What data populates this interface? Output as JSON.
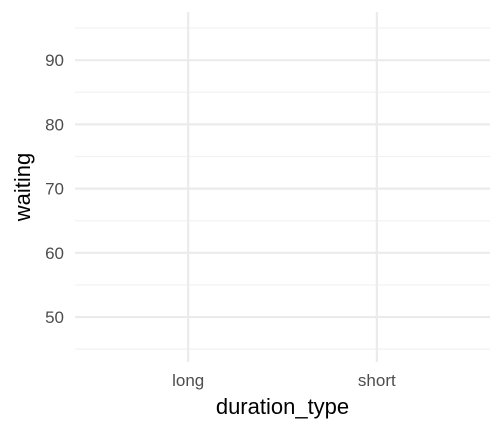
{
  "chart_data": {
    "type": "scatter",
    "title": "",
    "xlabel": "duration_type",
    "ylabel": "waiting",
    "categories": [
      "long",
      "short"
    ],
    "x": [],
    "y": [],
    "ylim": [
      43,
      97.5
    ],
    "yticks": [
      50,
      60,
      70,
      80,
      90
    ],
    "yminor": [
      45,
      55,
      65,
      75,
      85,
      95
    ],
    "grid": true,
    "legend": "none"
  },
  "colors": {
    "background": "#ffffff",
    "grid_major": "#ebebeb",
    "grid_minor": "#f2f2f2",
    "tick_text": "#4d4d4d",
    "title_text": "#000000"
  }
}
